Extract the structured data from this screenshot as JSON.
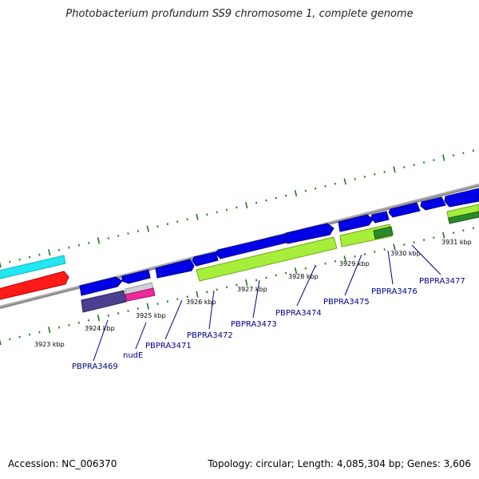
{
  "title": "Photobacterium profundum SS9 chromosome 1, complete genome",
  "footer": {
    "accession": "Accession: NC_006370",
    "summary": "Topology: circular; Length: 4,085,304 bp; Genes: 3,606"
  },
  "colors": {
    "cds_blue": "#0000e6",
    "backbone": "#8a8a8a",
    "lime": "#a6ee3a",
    "cyan": "#22e6f0",
    "red": "#ff1a1a",
    "purple": "#4b3f8f",
    "pink": "#ee2a9a",
    "dark_green": "#2a8a2a",
    "tick_green": "#1e7a1e",
    "label_navy": "#00008b"
  },
  "ruler": {
    "unit": "kbp",
    "labels": [
      "3923 kbp",
      "3924 kbp",
      "3925 kbp",
      "3926 kbp",
      "3927 kbp",
      "3928 kbp",
      "3929 kbp",
      "3930 kbp",
      "3931 kbp"
    ]
  },
  "genes": [
    "PBPRA3469",
    "nudE",
    "PBPRA3471",
    "PBPRA3472",
    "PBPRA3473",
    "PBPRA3474",
    "PBPRA3475",
    "PBPRA3476",
    "PBPRA3477"
  ]
}
